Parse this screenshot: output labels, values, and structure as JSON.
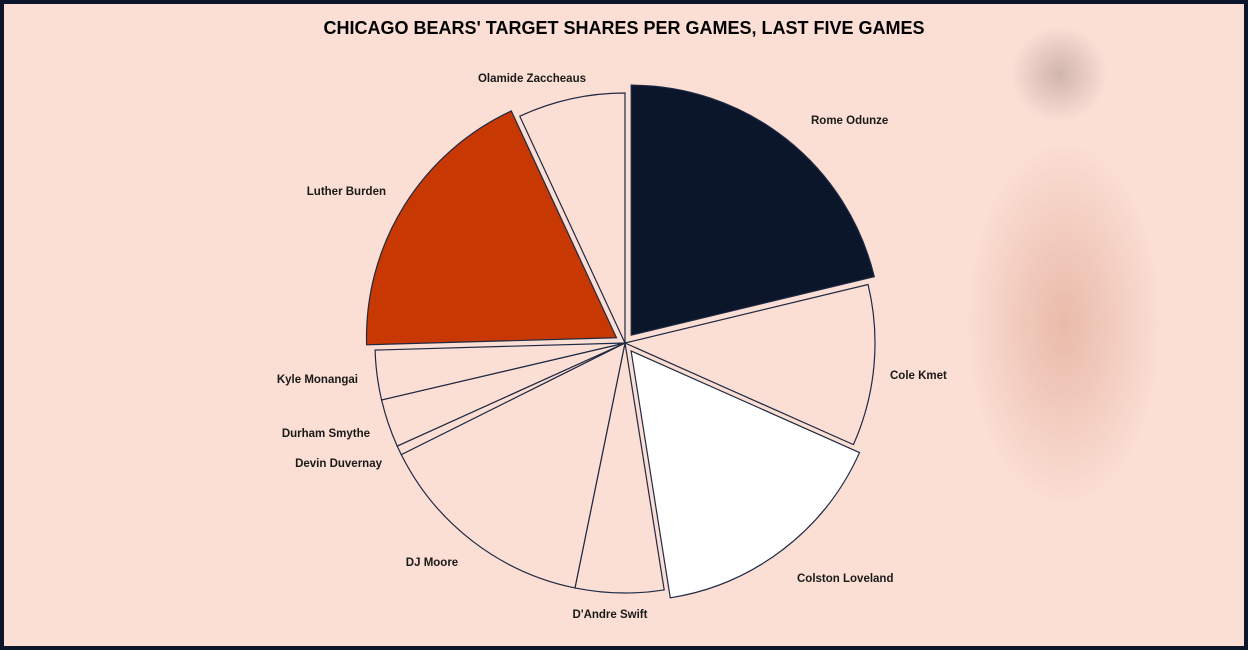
{
  "chart_data": {
    "type": "pie",
    "title": "CHICAGO BEARS' TARGET SHARES PER GAMES, LAST FIVE GAMES",
    "start": "top, clockwise",
    "slices": [
      {
        "label": "Rome Odunze",
        "value": 21.2,
        "color": "#0b162a",
        "exploded": true
      },
      {
        "label": "Cole Kmet",
        "value": 10.4,
        "color": "#fbded4",
        "exploded": false
      },
      {
        "label": "Colston Loveland",
        "value": 15.8,
        "color": "#ffffff",
        "exploded": true
      },
      {
        "label": "D'Andre Swift",
        "value": 5.7,
        "color": "#fbded4",
        "exploded": false
      },
      {
        "label": "DJ Moore",
        "value": 14.4,
        "color": "#fbded4",
        "exploded": false
      },
      {
        "label": "Devin Duvernay",
        "value": 0.6,
        "color": "#fbded4",
        "exploded": false
      },
      {
        "label": "Durham Smythe",
        "value": 3.1,
        "color": "#fbded4",
        "exploded": false
      },
      {
        "label": "Kyle Monangai",
        "value": 3.2,
        "color": "#fbded4",
        "exploded": false
      },
      {
        "label": "Luther Burden",
        "value": 18.5,
        "color": "#c83803",
        "exploded": true
      },
      {
        "label": "Olamide Zaccheaus",
        "value": 6.9,
        "color": "#fbded4",
        "exploded": false
      }
    ]
  }
}
